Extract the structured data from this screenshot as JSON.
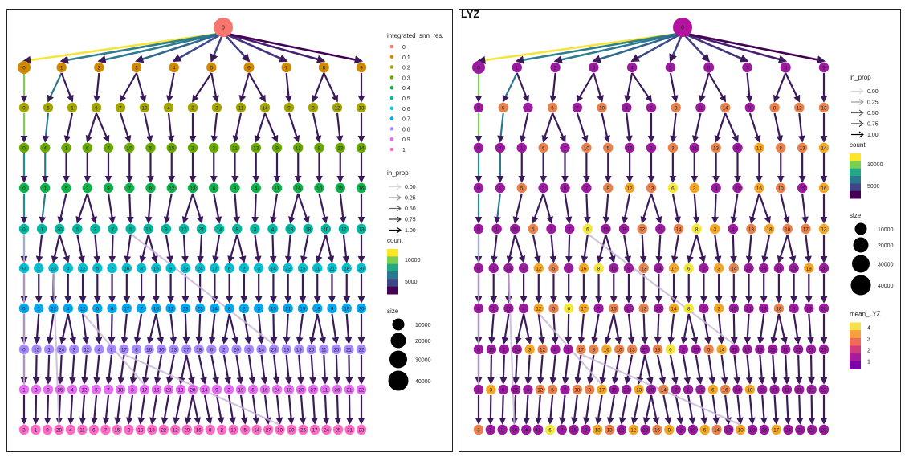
{
  "right_title": "LYZ",
  "legend_left": {
    "color_title": "integrated_snn_res.",
    "color_items": [
      {
        "label": "0",
        "color": "#F8766D"
      },
      {
        "label": "0.1",
        "color": "#D89000"
      },
      {
        "label": "0.2",
        "color": "#A3A500"
      },
      {
        "label": "0.3",
        "color": "#39B600"
      },
      {
        "label": "0.4",
        "color": "#00BF7D"
      },
      {
        "label": "0.5",
        "color": "#00BFC4"
      },
      {
        "label": "0.6",
        "color": "#00B0F6"
      },
      {
        "label": "0.7",
        "color": "#9590FF"
      },
      {
        "label": "0.8",
        "color": "#E76BF3"
      },
      {
        "label": "0.9",
        "color": "#E76BF3"
      },
      {
        "label": "1",
        "color": "#FF62BC"
      }
    ],
    "in_prop_title": "in_prop",
    "in_prop_items": [
      "0.00",
      "0.25",
      "0.50",
      "0.75",
      "1.00"
    ],
    "count_title": "count",
    "count_ticks": [
      "10000",
      "5000"
    ],
    "size_title": "size",
    "size_items": [
      "10000",
      "20000",
      "30000",
      "40000"
    ]
  },
  "legend_right": {
    "in_prop_title": "in_prop",
    "in_prop_items": [
      "0.00",
      "0.25",
      "0.50",
      "0.75",
      "1.00"
    ],
    "count_title": "count",
    "count_ticks": [
      "10000",
      "5000"
    ],
    "size_title": "size",
    "size_items": [
      "10000",
      "20000",
      "30000",
      "40000"
    ],
    "mean_title": "mean_LYZ",
    "mean_ticks": [
      "4",
      "3",
      "2",
      "1"
    ]
  },
  "tree_left": {
    "levels": [
      [
        "0"
      ],
      [
        "0",
        "1",
        "2",
        "3",
        "4",
        "5",
        "6",
        "7",
        "8",
        "9"
      ],
      [
        "0",
        "5",
        "1",
        "6",
        "7",
        "10",
        "4",
        "2",
        "3",
        "11",
        "14",
        "9",
        "8",
        "12",
        "13"
      ],
      [
        "0",
        "4",
        "1",
        "6",
        "7",
        "10",
        "5",
        "15",
        "2",
        "3",
        "11",
        "13",
        "9",
        "12",
        "8",
        "13",
        "14"
      ],
      [
        "0",
        "1",
        "5",
        "2",
        "9",
        "7",
        "8",
        "12",
        "13",
        "6",
        "3",
        "4",
        "11",
        "16",
        "10",
        "15",
        "16"
      ],
      [
        "0",
        "1",
        "20",
        "5",
        "2",
        "7",
        "6",
        "15",
        "9",
        "12",
        "21",
        "14",
        "8",
        "3",
        "4",
        "13",
        "18",
        "10",
        "17",
        "13"
      ],
      [
        "0",
        "1",
        "23",
        "4",
        "12",
        "5",
        "7",
        "16",
        "8",
        "15",
        "9",
        "13",
        "24",
        "17",
        "6",
        "2",
        "3",
        "14",
        "22",
        "19",
        "11",
        "21",
        "18",
        "20"
      ],
      [
        "0",
        "1",
        "22",
        "4",
        "12",
        "5",
        "6",
        "17",
        "7",
        "16",
        "11",
        "13",
        "23",
        "14",
        "8",
        "2",
        "3",
        "15",
        "21",
        "19",
        "18",
        "9",
        "19",
        "20"
      ],
      [
        "0",
        "15",
        "1",
        "24",
        "3",
        "12",
        "4",
        "7",
        "17",
        "8",
        "16",
        "10",
        "13",
        "27",
        "18",
        "6",
        "2",
        "20",
        "5",
        "14",
        "23",
        "19",
        "19",
        "26",
        "11",
        "25",
        "21",
        "22"
      ],
      [
        "1",
        "3",
        "0",
        "25",
        "4",
        "12",
        "5",
        "7",
        "18",
        "8",
        "17",
        "15",
        "23",
        "13",
        "28",
        "14",
        "9",
        "2",
        "19",
        "6",
        "16",
        "24",
        "10",
        "20",
        "27",
        "11",
        "26",
        "21",
        "22"
      ],
      [
        "3",
        "1",
        "0",
        "28",
        "4",
        "11",
        "6",
        "7",
        "15",
        "9",
        "18",
        "13",
        "22",
        "12",
        "29",
        "16",
        "8",
        "2",
        "19",
        "5",
        "14",
        "27",
        "10",
        "20",
        "26",
        "17",
        "24",
        "25",
        "21",
        "23"
      ]
    ]
  },
  "tree_right": {
    "levels": [
      [
        "0"
      ],
      [
        "0",
        "1",
        "2",
        "3",
        "4",
        "5",
        "6",
        "7",
        "8",
        "9"
      ],
      [
        "0",
        "5",
        "1",
        "6",
        "7",
        "10",
        "4",
        "2",
        "3",
        "11",
        "14",
        "9",
        "8",
        "12",
        "13"
      ],
      [
        "0",
        "4",
        "1",
        "6",
        "7",
        "10",
        "5",
        "15",
        "2",
        "3",
        "11",
        "13",
        "9",
        "12",
        "8",
        "13",
        "14"
      ],
      [
        "0",
        "1",
        "5",
        "2",
        "9",
        "7",
        "8",
        "12",
        "13",
        "6",
        "3",
        "4",
        "11",
        "16",
        "10",
        "15",
        "16"
      ],
      [
        "0",
        "1",
        "20",
        "5",
        "2",
        "7",
        "6",
        "15",
        "9",
        "12",
        "21",
        "14",
        "8",
        "3",
        "4",
        "13",
        "18",
        "10",
        "17",
        "13"
      ],
      [
        "0",
        "1",
        "23",
        "4",
        "12",
        "5",
        "7",
        "16",
        "8",
        "15",
        "9",
        "13",
        "24",
        "17",
        "6",
        "2",
        "3",
        "14",
        "22",
        "19",
        "11",
        "21",
        "18",
        "20"
      ],
      [
        "0",
        "1",
        "22",
        "4",
        "12",
        "5",
        "6",
        "17",
        "7",
        "16",
        "11",
        "13",
        "23",
        "14",
        "8",
        "2",
        "3",
        "15",
        "21",
        "19",
        "18",
        "9",
        "19",
        "20"
      ],
      [
        "0",
        "15",
        "1",
        "24",
        "3",
        "12",
        "4",
        "7",
        "17",
        "8",
        "16",
        "10",
        "13",
        "27",
        "18",
        "6",
        "2",
        "20",
        "5",
        "14",
        "23",
        "19",
        "19",
        "26",
        "11",
        "25",
        "21",
        "22"
      ],
      [
        "1",
        "3",
        "0",
        "25",
        "4",
        "12",
        "5",
        "7",
        "18",
        "8",
        "17",
        "15",
        "23",
        "13",
        "28",
        "14",
        "9",
        "2",
        "19",
        "6",
        "16",
        "24",
        "10",
        "20",
        "27",
        "11",
        "26",
        "21",
        "22"
      ],
      [
        "3",
        "1",
        "0",
        "28",
        "4",
        "11",
        "6",
        "7",
        "15",
        "9",
        "18",
        "13",
        "22",
        "12",
        "29",
        "16",
        "8",
        "2",
        "19",
        "5",
        "14",
        "27",
        "10",
        "20",
        "26",
        "17",
        "24",
        "25",
        "21",
        "23"
      ]
    ],
    "highlight_values": [
      "3",
      "10",
      "6",
      "13",
      "12",
      "14",
      "8",
      "16",
      "18",
      "17",
      "5"
    ]
  }
}
